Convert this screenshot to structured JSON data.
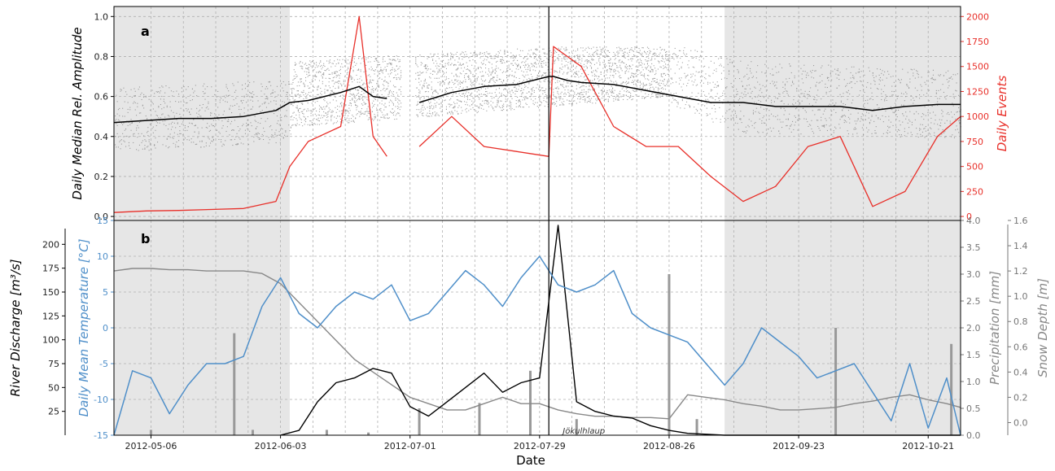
{
  "chart_data": [
    {
      "panel": "a",
      "type": "line",
      "x_dates": [
        "2012-04-28",
        "2012-05-05",
        "2012-05-12",
        "2012-05-19",
        "2012-05-26",
        "2012-06-02",
        "2012-06-05",
        "2012-06-09",
        "2012-06-16",
        "2012-06-20",
        "2012-06-23",
        "2012-06-26",
        "2012-06-29",
        "2012-07-03",
        "2012-07-10",
        "2012-07-17",
        "2012-07-24",
        "2012-07-31",
        "2012-08-01",
        "2012-08-04",
        "2012-08-07",
        "2012-08-14",
        "2012-08-21",
        "2012-08-28",
        "2012-09-04",
        "2012-09-11",
        "2012-09-18",
        "2012-09-25",
        "2012-10-02",
        "2012-10-09",
        "2012-10-16",
        "2012-10-23",
        "2012-10-28"
      ],
      "series": [
        {
          "axis": "left",
          "color": "#000000",
          "values": [
            0.47,
            0.48,
            0.49,
            0.49,
            0.5,
            0.53,
            0.57,
            0.58,
            0.62,
            0.65,
            0.6,
            0.59,
            null,
            0.57,
            0.62,
            0.65,
            0.66,
            0.7,
            0.7,
            0.68,
            0.67,
            0.66,
            0.63,
            0.6,
            0.57,
            0.57,
            0.55,
            0.55,
            0.55,
            0.53,
            0.55,
            0.56,
            0.56
          ]
        },
        {
          "axis": "right",
          "color": "#e8302a",
          "values": [
            40,
            55,
            60,
            70,
            80,
            150,
            500,
            750,
            900,
            2000,
            800,
            600,
            null,
            700,
            1000,
            700,
            650,
            600,
            1700,
            1600,
            1500,
            900,
            700,
            700,
            400,
            150,
            300,
            700,
            800,
            100,
            250,
            800,
            1000
          ]
        }
      ],
      "scatter_band": {
        "color": "#808080",
        "x_dates": [
          "2012-04-28",
          "2012-06-05",
          "2012-06-06",
          "2012-08-01",
          "2012-08-25",
          "2012-09-10",
          "2012-10-28"
        ],
        "low": [
          0.35,
          0.4,
          0.45,
          0.55,
          0.6,
          0.45,
          0.42
        ],
        "high": [
          0.62,
          0.66,
          0.78,
          0.85,
          0.85,
          0.75,
          0.7
        ]
      },
      "shaded_spans": [
        [
          "2012-04-28",
          "2012-06-05"
        ],
        [
          "2012-09-07",
          "2012-10-28"
        ]
      ],
      "ylabel_left": "Daily Median Rel. Amplitude",
      "ylabel_right": "Daily Events",
      "ylim_left": [
        -0.02,
        1.05
      ],
      "ylim_right": [
        -40,
        2100
      ],
      "yticks_left": [
        "0.0",
        "0.2",
        "0.4",
        "0.6",
        "0.8",
        "1.0"
      ],
      "yticks_right": [
        "0",
        "250",
        "500",
        "750",
        "1000",
        "1250",
        "1500",
        "1750",
        "2000"
      ],
      "grid": true
    },
    {
      "panel": "b",
      "type": "line",
      "xlabel": "Date",
      "xticks": [
        "2012-05-06",
        "2012-06-03",
        "2012-07-01",
        "2012-07-29",
        "2012-08-26",
        "2012-09-23",
        "2012-10-21"
      ],
      "x_dates": [
        "2012-04-28",
        "2012-05-02",
        "2012-05-06",
        "2012-05-10",
        "2012-05-14",
        "2012-05-18",
        "2012-05-22",
        "2012-05-26",
        "2012-05-30",
        "2012-06-03",
        "2012-06-07",
        "2012-06-11",
        "2012-06-15",
        "2012-06-19",
        "2012-06-23",
        "2012-06-27",
        "2012-07-01",
        "2012-07-05",
        "2012-07-09",
        "2012-07-13",
        "2012-07-17",
        "2012-07-21",
        "2012-07-25",
        "2012-07-29",
        "2012-08-02",
        "2012-08-06",
        "2012-08-10",
        "2012-08-14",
        "2012-08-18",
        "2012-08-22",
        "2012-08-26",
        "2012-08-30",
        "2012-09-03",
        "2012-09-07",
        "2012-09-11",
        "2012-09-15",
        "2012-09-19",
        "2012-09-23",
        "2012-09-27",
        "2012-10-01",
        "2012-10-05",
        "2012-10-09",
        "2012-10-13",
        "2012-10-17",
        "2012-10-21",
        "2012-10-25",
        "2012-10-28"
      ],
      "series": [
        {
          "axis": "temperature",
          "color": "#4f8fc9",
          "values": [
            -15,
            -6,
            -7,
            -12,
            -8,
            -5,
            -5,
            -4,
            3,
            7,
            2,
            0,
            3,
            5,
            4,
            6,
            1,
            2,
            5,
            8,
            6,
            3,
            7,
            10,
            6,
            5,
            6,
            8,
            2,
            0,
            -1,
            -2,
            -5,
            -8,
            -5,
            0,
            -2,
            -4,
            -7,
            -6,
            -5,
            -9,
            -13,
            -5,
            -14,
            -7,
            -15
          ]
        },
        {
          "axis": "discharge",
          "color": "#000000",
          "values": [
            null,
            null,
            null,
            null,
            null,
            null,
            null,
            null,
            null,
            0,
            5,
            35,
            55,
            60,
            70,
            65,
            30,
            20,
            35,
            50,
            65,
            45,
            55,
            60,
            220,
            35,
            25,
            20,
            18,
            10,
            5,
            2,
            1,
            0,
            0,
            0,
            0,
            0,
            0,
            0,
            0,
            0,
            0,
            0,
            0,
            0,
            0
          ]
        },
        {
          "axis": "snow",
          "color": "#888888",
          "values": [
            1.2,
            1.22,
            1.22,
            1.21,
            1.21,
            1.2,
            1.2,
            1.2,
            1.18,
            1.1,
            0.95,
            0.8,
            0.65,
            0.5,
            0.4,
            0.3,
            0.2,
            0.15,
            0.1,
            0.1,
            0.15,
            0.2,
            0.15,
            0.15,
            0.1,
            0.07,
            0.05,
            0.05,
            0.04,
            0.04,
            0.03,
            0.22,
            0.2,
            0.18,
            0.15,
            0.13,
            0.1,
            0.1,
            0.11,
            0.12,
            0.15,
            0.17,
            0.2,
            0.22,
            0.18,
            0.15,
            0.12
          ]
        }
      ],
      "precipitation_bars": {
        "color": "#999999",
        "x_dates": [
          "2012-05-06",
          "2012-05-24",
          "2012-05-28",
          "2012-06-13",
          "2012-06-22",
          "2012-07-03",
          "2012-07-16",
          "2012-07-27",
          "2012-08-06",
          "2012-08-26",
          "2012-09-01",
          "2012-10-01",
          "2012-10-26"
        ],
        "values": [
          0.1,
          1.9,
          0.1,
          0.1,
          0.05,
          0.5,
          0.6,
          1.2,
          0.3,
          3.0,
          0.3,
          2.0,
          1.7
        ]
      },
      "shaded_spans": [
        [
          "2012-04-28",
          "2012-06-05"
        ],
        [
          "2012-09-07",
          "2012-10-28"
        ]
      ],
      "ylabel_discharge": "River Discharge [m³/s]",
      "ylabel_temperature": "Daily Mean Temperature [°C]",
      "ylabel_precipitation": "Precipitation [mm]",
      "ylabel_snow": "Snow Depth [m]",
      "ylim_temperature": [
        -15,
        15
      ],
      "ylim_precipitation": [
        0,
        4.0
      ],
      "ylim_snow": [
        -0.1,
        1.6
      ],
      "ylim_discharge": [
        0,
        225
      ],
      "yticks_discharge": [
        "25",
        "50",
        "75",
        "100",
        "125",
        "150",
        "175",
        "200"
      ],
      "yticks_temperature": [
        "-15",
        "-10",
        "-5",
        "0",
        "5",
        "10",
        "15"
      ],
      "yticks_precipitation": [
        "0.0",
        "0.5",
        "1.0",
        "1.5",
        "2.0",
        "2.5",
        "3.0",
        "3.5",
        "4.0"
      ],
      "yticks_snow": [
        "0.0",
        "0.2",
        "0.4",
        "0.6",
        "0.8",
        "1.0",
        "1.2",
        "1.4",
        "1.6"
      ],
      "annotations": [
        {
          "text": "Jökulhlaup",
          "x_date": "2012-08-03",
          "y_temperature": -14.2
        }
      ],
      "event_line": "2012-07-31",
      "grid": true
    }
  ]
}
